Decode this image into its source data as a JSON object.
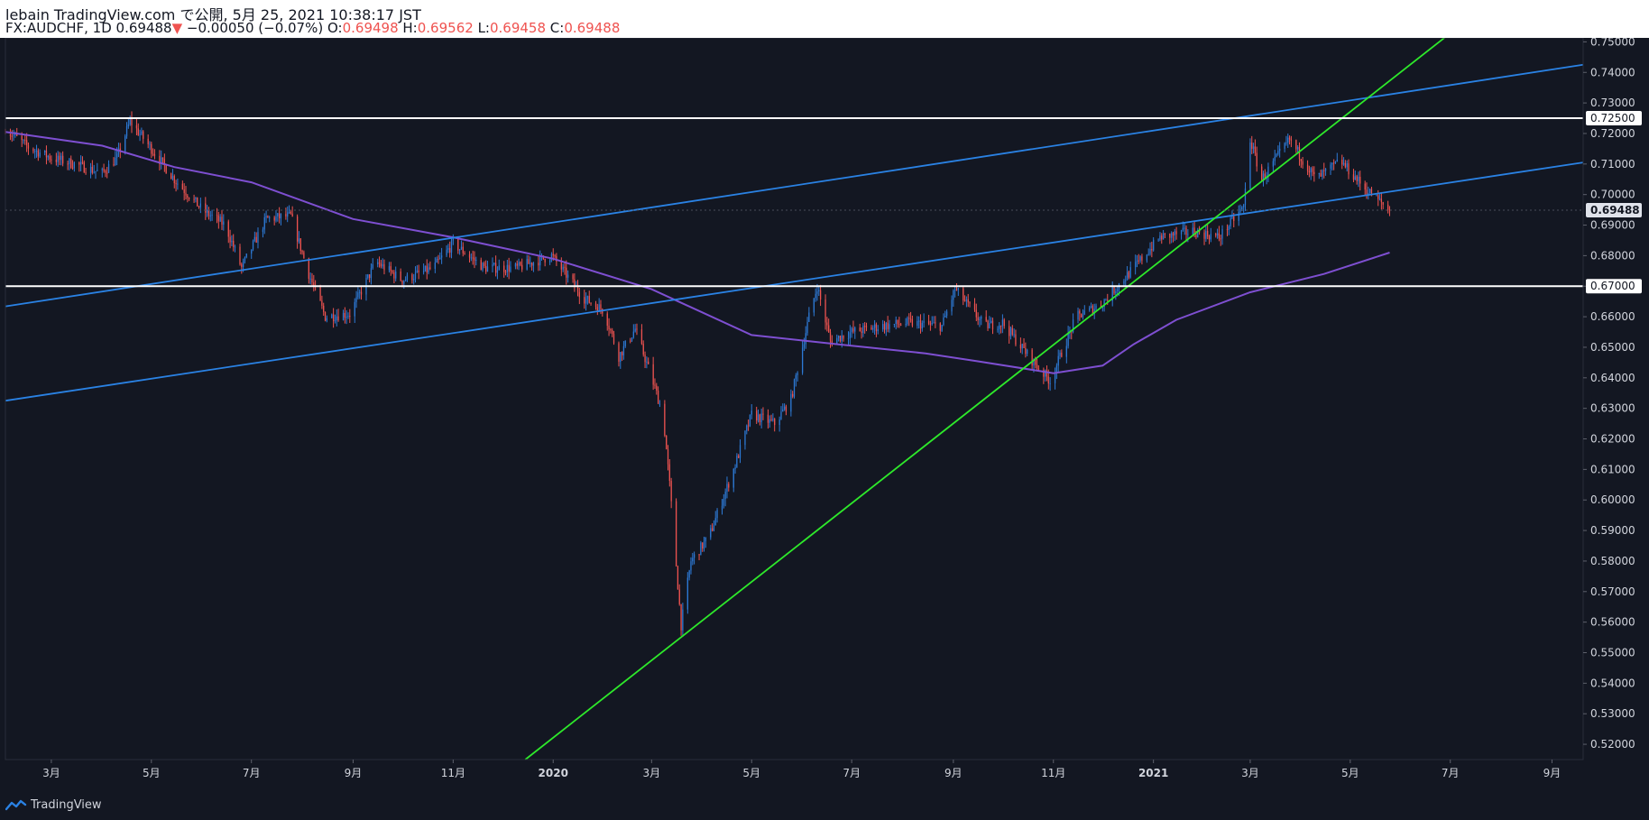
{
  "header": {
    "published": "lebain TradingView.com で公開, 5月 25, 2021 10:38:17 JST",
    "symbol": "FX:AUDCHF, 1D",
    "last": "0.69488",
    "arrow": "▼",
    "change": "−0.00050 (−0.07%)",
    "o_label": "O:",
    "o": "0.69498",
    "h_label": "H:",
    "h": "0.69562",
    "l_label": "L:",
    "l": "0.69458",
    "c_label": "C:",
    "c": "0.69488"
  },
  "footer": {
    "brand": "TradingView",
    "logo_icon": "tradingview-logo-icon"
  },
  "colors": {
    "background": "#131722",
    "up": "#2d7ad6",
    "down": "#ef5350",
    "ma": "#7e4fd1",
    "channel": "#2a82e4",
    "trend": "#2ee92b",
    "level": "#ffffff",
    "axis_text": "#d1d4dc"
  },
  "chart_data": {
    "type": "candlestick",
    "x_axis": {
      "range": [
        "2019-02-01",
        "2021-09-20"
      ],
      "ticks": [
        {
          "date": "2019-03-01",
          "label": "3月"
        },
        {
          "date": "2019-05-01",
          "label": "5月"
        },
        {
          "date": "2019-07-01",
          "label": "7月"
        },
        {
          "date": "2019-09-01",
          "label": "9月"
        },
        {
          "date": "2019-11-01",
          "label": "11月"
        },
        {
          "date": "2020-01-01",
          "label": "2020",
          "bold": true
        },
        {
          "date": "2020-03-01",
          "label": "3月"
        },
        {
          "date": "2020-05-01",
          "label": "5月"
        },
        {
          "date": "2020-07-01",
          "label": "7月"
        },
        {
          "date": "2020-09-01",
          "label": "9月"
        },
        {
          "date": "2020-11-01",
          "label": "11月"
        },
        {
          "date": "2021-01-01",
          "label": "2021",
          "bold": true
        },
        {
          "date": "2021-03-01",
          "label": "3月"
        },
        {
          "date": "2021-05-01",
          "label": "5月"
        },
        {
          "date": "2021-07-01",
          "label": "7月"
        },
        {
          "date": "2021-09-01",
          "label": "9月"
        }
      ]
    },
    "y_axis": {
      "range": [
        0.515,
        0.7513
      ],
      "ticks": [
        "0.52000",
        "0.53000",
        "0.54000",
        "0.55000",
        "0.56000",
        "0.57000",
        "0.58000",
        "0.59000",
        "0.60000",
        "0.61000",
        "0.62000",
        "0.63000",
        "0.64000",
        "0.65000",
        "0.66000",
        "0.67000",
        "0.68000",
        "0.69000",
        "0.70000",
        "0.71000",
        "0.72000",
        "0.73000",
        "0.74000",
        "0.75000"
      ]
    },
    "price_anchors": [
      [
        "2019-02-01",
        0.7215
      ],
      [
        "2019-02-15",
        0.7155
      ],
      [
        "2019-03-01",
        0.712
      ],
      [
        "2019-03-15",
        0.71
      ],
      [
        "2019-04-01",
        0.707
      ],
      [
        "2019-04-10",
        0.712
      ],
      [
        "2019-04-18",
        0.724
      ],
      [
        "2019-05-01",
        0.715
      ],
      [
        "2019-05-15",
        0.705
      ],
      [
        "2019-06-01",
        0.695
      ],
      [
        "2019-06-15",
        0.69
      ],
      [
        "2019-06-25",
        0.676
      ],
      [
        "2019-07-10",
        0.692
      ],
      [
        "2019-07-25",
        0.693
      ],
      [
        "2019-08-05",
        0.674
      ],
      [
        "2019-08-15",
        0.66
      ],
      [
        "2019-08-30",
        0.661
      ],
      [
        "2019-09-15",
        0.678
      ],
      [
        "2019-10-01",
        0.672
      ],
      [
        "2019-10-20",
        0.676
      ],
      [
        "2019-11-01",
        0.684
      ],
      [
        "2019-11-20",
        0.676
      ],
      [
        "2019-12-10",
        0.676
      ],
      [
        "2019-12-31",
        0.68
      ],
      [
        "2020-01-20",
        0.666
      ],
      [
        "2020-02-01",
        0.662
      ],
      [
        "2020-02-10",
        0.647
      ],
      [
        "2020-02-20",
        0.656
      ],
      [
        "2020-03-01",
        0.64
      ],
      [
        "2020-03-08",
        0.628
      ],
      [
        "2020-03-12",
        0.605
      ],
      [
        "2020-03-19",
        0.559
      ],
      [
        "2020-03-25",
        0.58
      ],
      [
        "2020-04-05",
        0.588
      ],
      [
        "2020-04-20",
        0.61
      ],
      [
        "2020-05-01",
        0.628
      ],
      [
        "2020-05-15",
        0.625
      ],
      [
        "2020-05-25",
        0.633
      ],
      [
        "2020-06-05",
        0.66
      ],
      [
        "2020-06-10",
        0.67
      ],
      [
        "2020-06-18",
        0.652
      ],
      [
        "2020-07-01",
        0.655
      ],
      [
        "2020-07-20",
        0.657
      ],
      [
        "2020-08-05",
        0.658
      ],
      [
        "2020-08-25",
        0.657
      ],
      [
        "2020-09-02",
        0.669
      ],
      [
        "2020-09-20",
        0.657
      ],
      [
        "2020-10-01",
        0.658
      ],
      [
        "2020-10-20",
        0.645
      ],
      [
        "2020-10-30",
        0.639
      ],
      [
        "2020-11-15",
        0.66
      ],
      [
        "2020-11-30",
        0.664
      ],
      [
        "2020-12-20",
        0.676
      ],
      [
        "2021-01-05",
        0.686
      ],
      [
        "2021-01-25",
        0.688
      ],
      [
        "2021-02-10",
        0.686
      ],
      [
        "2021-02-25",
        0.696
      ],
      [
        "2021-03-01",
        0.718
      ],
      [
        "2021-03-08",
        0.705
      ],
      [
        "2021-03-25",
        0.718
      ],
      [
        "2021-04-10",
        0.705
      ],
      [
        "2021-04-25",
        0.711
      ],
      [
        "2021-05-10",
        0.702
      ],
      [
        "2021-05-25",
        0.6949
      ]
    ],
    "moving_average": [
      [
        "2019-02-01",
        0.7205
      ],
      [
        "2019-04-01",
        0.716
      ],
      [
        "2019-05-15",
        0.709
      ],
      [
        "2019-07-01",
        0.704
      ],
      [
        "2019-09-01",
        0.692
      ],
      [
        "2019-11-01",
        0.686
      ],
      [
        "2020-01-01",
        0.679
      ],
      [
        "2020-03-01",
        0.669
      ],
      [
        "2020-05-01",
        0.654
      ],
      [
        "2020-07-01",
        0.6505
      ],
      [
        "2020-08-15",
        0.648
      ],
      [
        "2020-09-15",
        0.6455
      ],
      [
        "2020-11-01",
        0.6415
      ],
      [
        "2020-12-01",
        0.644
      ],
      [
        "2020-12-20",
        0.651
      ],
      [
        "2021-01-15",
        0.659
      ],
      [
        "2021-03-01",
        0.668
      ],
      [
        "2021-04-15",
        0.674
      ],
      [
        "2021-05-25",
        0.681
      ]
    ],
    "channel_upper": [
      [
        "2019-02-01",
        0.6634
      ],
      [
        "2021-09-20",
        0.7425
      ]
    ],
    "channel_lower": [
      [
        "2019-02-01",
        0.6325
      ],
      [
        "2021-09-20",
        0.7105
      ]
    ],
    "trendline": [
      [
        "2019-12-15",
        0.515
      ],
      [
        "2021-09-20",
        0.787
      ]
    ],
    "levels": [
      "0.72500",
      "0.67000"
    ],
    "price_label": "0.69488",
    "last_price": 0.69488
  }
}
